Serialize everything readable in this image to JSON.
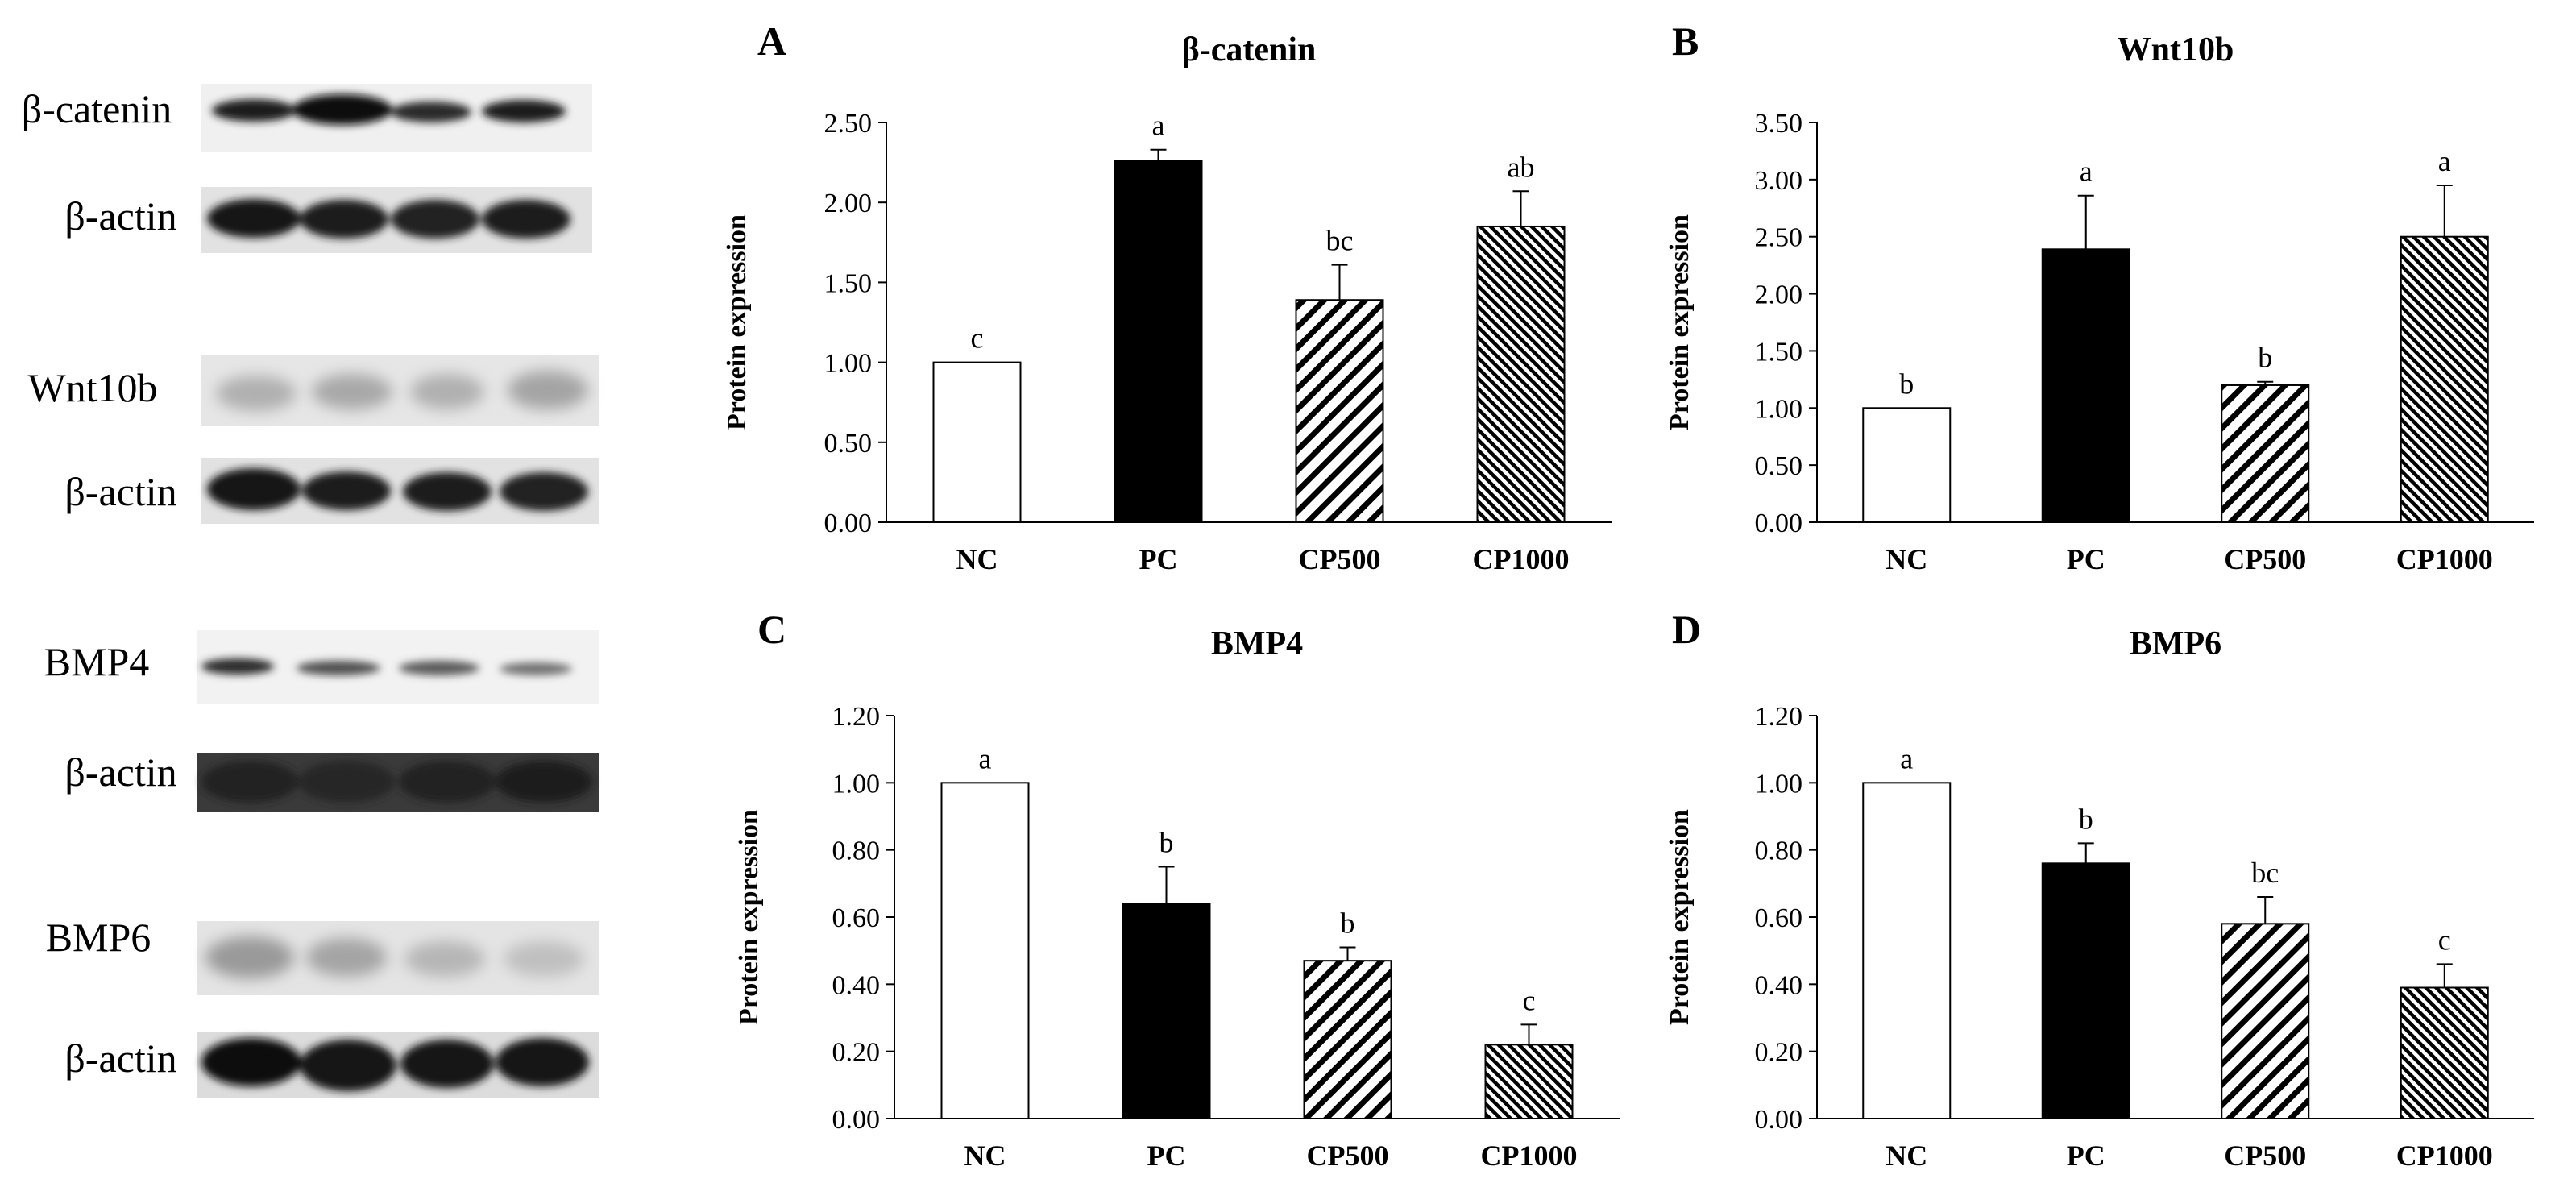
{
  "blots": [
    {
      "target_label": "β-catenin",
      "control_label": "β-actin"
    },
    {
      "target_label": "Wnt10b",
      "control_label": "β-actin"
    },
    {
      "target_label": "BMP4",
      "control_label": "β-actin"
    },
    {
      "target_label": "BMP6",
      "control_label": "β-actin"
    }
  ],
  "chart_data": [
    {
      "type": "bar",
      "panel": "A",
      "title": "β-catenin",
      "ylabel": "Protein expression",
      "categories": [
        "NC",
        "PC",
        "CP500",
        "CP1000"
      ],
      "values": [
        1.0,
        2.26,
        1.39,
        1.85
      ],
      "errors": [
        0.0,
        0.07,
        0.22,
        0.22
      ],
      "letters": [
        "c",
        "a",
        "bc",
        "ab"
      ],
      "ylim": [
        0,
        2.5
      ],
      "yticks": [
        "0.00",
        "0.50",
        "1.00",
        "1.50",
        "2.00",
        "2.50"
      ]
    },
    {
      "type": "bar",
      "panel": "B",
      "title": "Wnt10b",
      "ylabel": "Protein expression",
      "categories": [
        "NC",
        "PC",
        "CP500",
        "CP1000"
      ],
      "values": [
        1.0,
        2.39,
        1.2,
        2.5
      ],
      "errors": [
        0.0,
        0.47,
        0.03,
        0.45
      ],
      "letters": [
        "b",
        "a",
        "b",
        "a"
      ],
      "ylim": [
        0,
        3.5
      ],
      "yticks": [
        "0.00",
        "0.50",
        "1.00",
        "1.50",
        "2.00",
        "2.50",
        "3.00",
        "3.50"
      ]
    },
    {
      "type": "bar",
      "panel": "C",
      "title": "BMP4",
      "ylabel": "Protein expression",
      "categories": [
        "NC",
        "PC",
        "CP500",
        "CP1000"
      ],
      "values": [
        1.0,
        0.64,
        0.47,
        0.22
      ],
      "errors": [
        0.0,
        0.11,
        0.04,
        0.06
      ],
      "letters": [
        "a",
        "b",
        "b",
        "c"
      ],
      "ylim": [
        0,
        1.2
      ],
      "yticks": [
        "0.00",
        "0.20",
        "0.40",
        "0.60",
        "0.80",
        "1.00",
        "1.20"
      ]
    },
    {
      "type": "bar",
      "panel": "D",
      "title": "BMP6",
      "ylabel": "Protein expression",
      "categories": [
        "NC",
        "PC",
        "CP500",
        "CP1000"
      ],
      "values": [
        1.0,
        0.76,
        0.58,
        0.39
      ],
      "errors": [
        0.0,
        0.06,
        0.08,
        0.07
      ],
      "letters": [
        "a",
        "b",
        "bc",
        "c"
      ],
      "ylim": [
        0,
        1.2
      ],
      "yticks": [
        "0.00",
        "0.20",
        "0.40",
        "0.60",
        "0.80",
        "1.00",
        "1.20"
      ]
    }
  ]
}
